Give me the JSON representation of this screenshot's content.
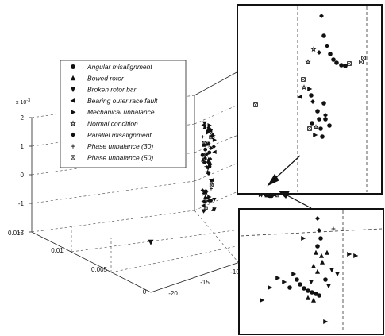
{
  "chart_data": {
    "type": "scatter",
    "projection": "3d",
    "title": "",
    "xlabel": "",
    "ylabel": "",
    "zlabel": "",
    "z_exponent_label": "x 10",
    "z_exponent_power": "-3",
    "x_ticks": [
      "-20",
      "-15",
      "-10"
    ],
    "y_ticks": [
      "0",
      "0.005",
      "0.01",
      "0.015"
    ],
    "z_ticks": [
      "2",
      "1",
      "0",
      "-1",
      "-2"
    ],
    "z_range": [
      -2,
      2
    ],
    "grid": true,
    "legend_position": "upper-left",
    "insets": [
      "zoom-upper-right",
      "zoom-lower-right"
    ],
    "series": [
      {
        "name": "Angular misalignment",
        "marker": "circle"
      },
      {
        "name": "Bowed rotor",
        "marker": "triangle-up"
      },
      {
        "name": "Broken rotor bar",
        "marker": "triangle-down"
      },
      {
        "name": "Bearing outer race fault",
        "marker": "triangle-left"
      },
      {
        "name": "Mechanical unbalance",
        "marker": "triangle-right"
      },
      {
        "name": "Normal condition",
        "marker": "star"
      },
      {
        "name": "Parallel misalignment",
        "marker": "diamond"
      },
      {
        "name": "Phase unbalance (30)",
        "marker": "plus"
      },
      {
        "name": "Phase unbalance (50)",
        "marker": "square-x"
      }
    ]
  }
}
